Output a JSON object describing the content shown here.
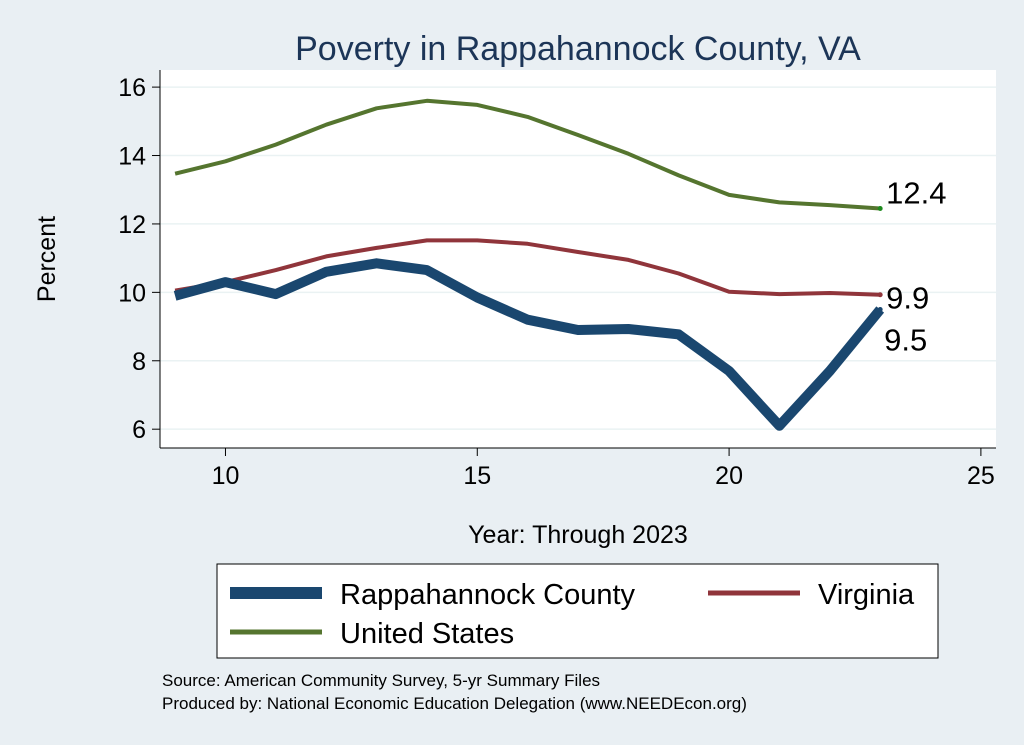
{
  "chart_data": {
    "type": "line",
    "title": "Poverty in Rappahannock County, VA",
    "xlabel": "Year: Through 2023",
    "ylabel": "Percent",
    "xlim": [
      8.7,
      25.3
    ],
    "ylim": [
      5.45,
      16.5
    ],
    "xticks": [
      10,
      15,
      20,
      25
    ],
    "yticks": [
      6,
      8,
      10,
      12,
      14,
      16
    ],
    "grid": true,
    "legend_position": "bottom",
    "x": [
      9,
      10,
      11,
      12,
      13,
      14,
      15,
      16,
      17,
      18,
      19,
      20,
      21,
      22,
      23
    ],
    "series": [
      {
        "name": "Rappahannock County",
        "color": "#1a476f",
        "values": [
          9.9,
          10.3,
          9.95,
          10.6,
          10.85,
          10.65,
          9.85,
          9.2,
          8.9,
          8.93,
          8.77,
          7.7,
          6.1,
          7.7,
          9.5
        ],
        "end_label": "9.5"
      },
      {
        "name": "Virginia",
        "color": "#90353b",
        "values": [
          10.05,
          10.3,
          10.65,
          11.05,
          11.3,
          11.52,
          11.52,
          11.42,
          11.18,
          10.95,
          10.55,
          10.02,
          9.95,
          9.98,
          9.93
        ],
        "end_label": "9.9"
      },
      {
        "name": "United States",
        "color": "#55752f",
        "values": [
          13.47,
          13.83,
          14.32,
          14.9,
          15.38,
          15.6,
          15.48,
          15.13,
          14.6,
          14.05,
          13.42,
          12.85,
          12.63,
          12.55,
          12.45
        ],
        "end_label": "12.4"
      }
    ]
  },
  "source": "Source: American Community Survey, 5-yr Summary Files",
  "producer": "Produced by: National Economic Education Delegation (www.NEEDEcon.org)"
}
